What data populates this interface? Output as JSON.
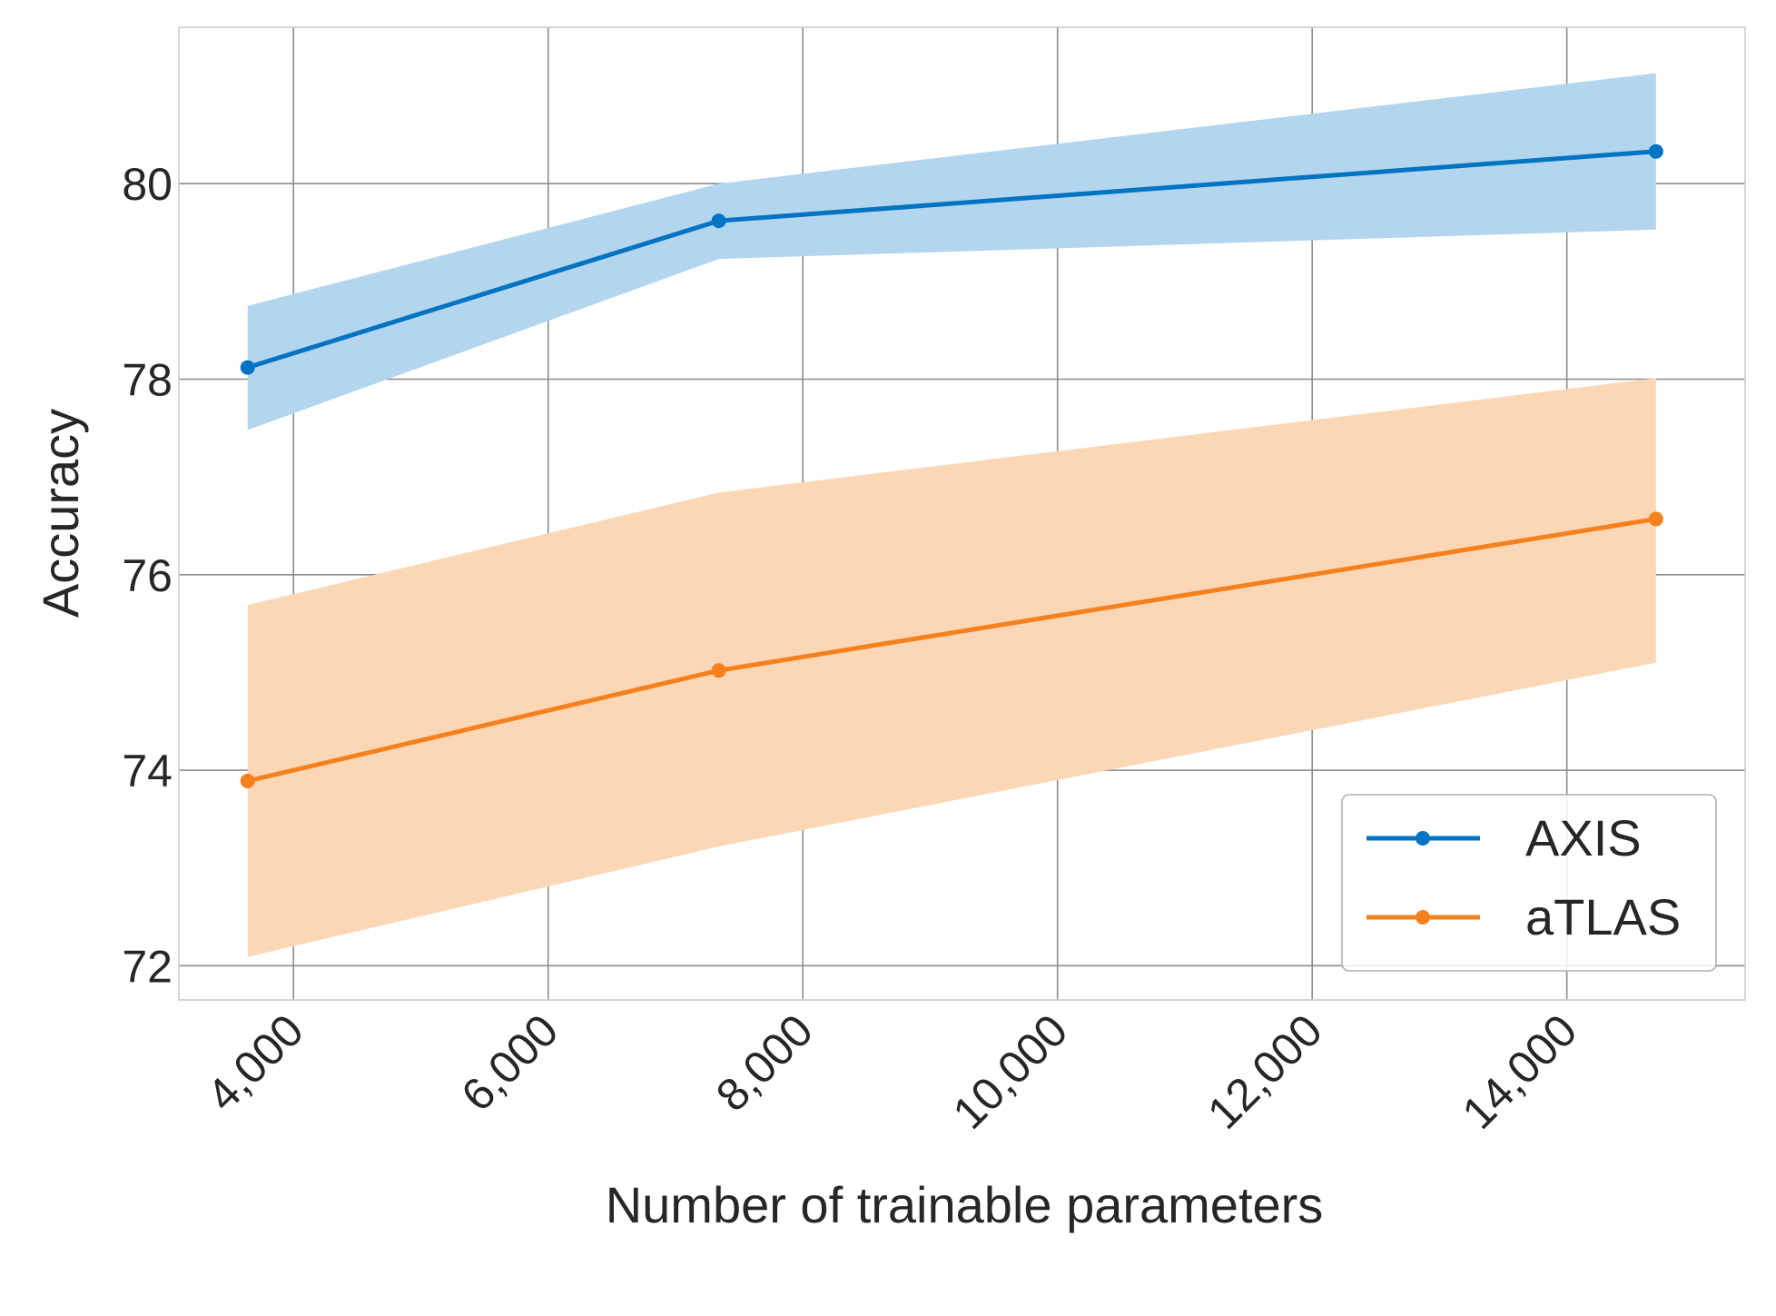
{
  "chart_data": {
    "type": "line",
    "title": "",
    "xlabel": "Number of trainable parameters",
    "ylabel": "Accuracy",
    "xlim": [
      3100,
      15400
    ],
    "ylim": [
      71.65,
      81.6
    ],
    "xticks": [
      4000,
      6000,
      8000,
      10000,
      12000,
      14000
    ],
    "xtick_labels": [
      "4,000",
      "6,000",
      "8,000",
      "10,000",
      "12,000",
      "14,000"
    ],
    "yticks": [
      72,
      74,
      76,
      78,
      80
    ],
    "ytick_labels": [
      "72",
      "74",
      "76",
      "78",
      "80"
    ],
    "grid": true,
    "legend_position": "lower-right",
    "x": [
      3640,
      7340,
      14700
    ],
    "series": [
      {
        "name": "AXIS",
        "color": "#0173c3",
        "band_color": "#b3d6ee",
        "values": [
          78.12,
          79.62,
          80.33
        ],
        "lower": [
          77.48,
          79.23,
          79.53
        ],
        "upper": [
          78.75,
          80.0,
          81.13
        ]
      },
      {
        "name": "aTLAS",
        "color": "#f5801e",
        "band_color": "#fcd7b6",
        "values": [
          73.89,
          75.02,
          76.57
        ],
        "lower": [
          72.09,
          73.22,
          75.1
        ],
        "upper": [
          75.69,
          76.84,
          78.01
        ]
      }
    ]
  }
}
